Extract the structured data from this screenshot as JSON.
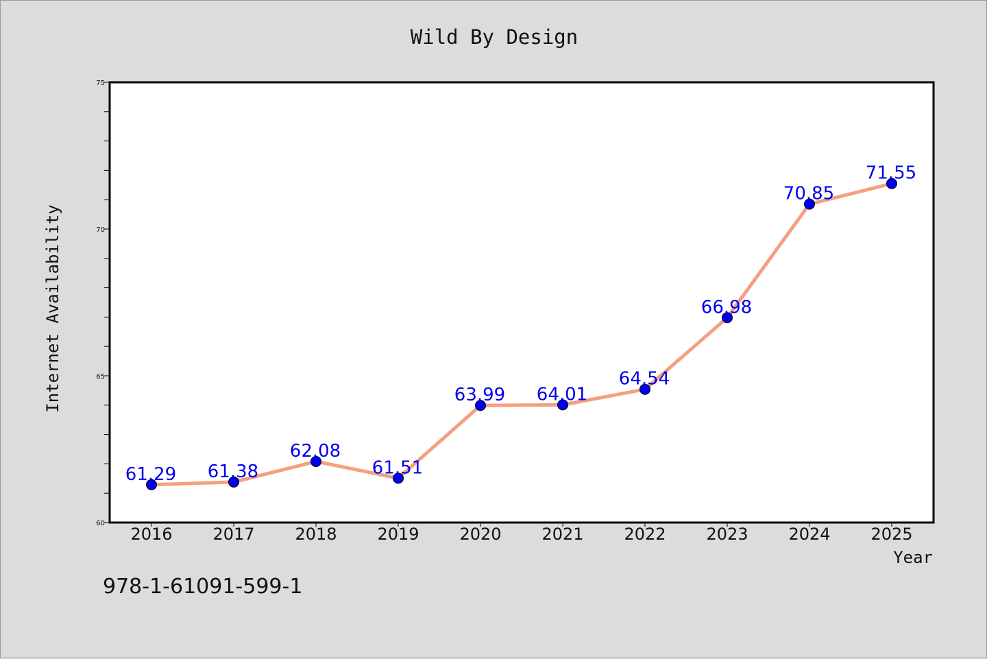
{
  "chart_data": {
    "type": "line",
    "title": "Wild By Design",
    "xlabel": "Year",
    "ylabel": "Internet Availability",
    "x": [
      "2016",
      "2017",
      "2018",
      "2019",
      "2020",
      "2021",
      "2022",
      "2023",
      "2024",
      "2025"
    ],
    "series": [
      {
        "values": [
          61.29,
          61.38,
          62.08,
          61.51,
          63.99,
          64.01,
          64.54,
          66.98,
          70.85,
          71.55
        ],
        "labels": [
          "61.29",
          "61.38",
          "62.08",
          "61.51",
          "63.99",
          "64.01",
          "64.54",
          "66.98",
          "70.85",
          "71.55"
        ],
        "line_color": "#f4a07e",
        "marker_color": "#0000ee"
      }
    ],
    "ylim": [
      60,
      75
    ],
    "yticks": [
      "60",
      "65",
      "70",
      "75"
    ],
    "grid": false,
    "legend": "none"
  },
  "footer": {
    "isbn": "978-1-61091-599-1"
  }
}
